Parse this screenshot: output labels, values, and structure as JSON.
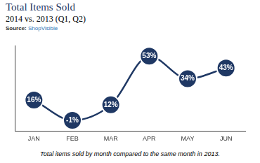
{
  "source_label": "Source:",
  "source": "ShopVisible",
  "caption": "Total items sold by month compared to the same month in 2013.",
  "chart_data": {
    "type": "line",
    "title": "Total Items Sold",
    "subtitle": "2014 vs. 2013 (Q1, Q2)",
    "categories": [
      "JAN",
      "FEB",
      "MAR",
      "APR",
      "MAY",
      "JUN"
    ],
    "values": [
      16,
      -1,
      12,
      53,
      34,
      43
    ],
    "value_labels": [
      "16%",
      "-1%",
      "12%",
      "53%",
      "34%",
      "43%"
    ],
    "color": "#1f3864",
    "data_labels": true,
    "tick_labels": "x",
    "grid": false,
    "ylim": [
      -10,
      62
    ]
  }
}
